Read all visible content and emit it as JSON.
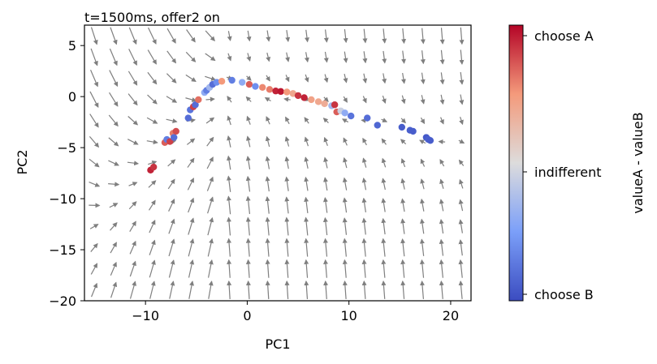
{
  "chart_data": {
    "type": "scatter",
    "title": "t=1500ms, offer2 on",
    "xlabel": "PC1",
    "ylabel": "PC2",
    "xlim": [
      -16,
      22
    ],
    "ylim": [
      -20,
      7
    ],
    "xticks": [
      -10,
      0,
      10,
      20
    ],
    "yticks": [
      5,
      0,
      -5,
      -10,
      -15,
      -20
    ],
    "xtick_labels": [
      "−10",
      "0",
      "10",
      "20"
    ],
    "ytick_labels": [
      "5",
      "0",
      "−5",
      "−10",
      "−15",
      "−20"
    ],
    "grid": false,
    "vector_field": {
      "type": "quiver",
      "color": "#7f7f7f",
      "description_of_flow": "arrows converge toward the curved trajectory near PC2≈0"
    },
    "points": [
      {
        "x": -9.5,
        "y": -7.2,
        "v": 0.95
      },
      {
        "x": -9.2,
        "y": -6.9,
        "v": 0.92
      },
      {
        "x": -8.1,
        "y": -4.5,
        "v": 0.85
      },
      {
        "x": -7.9,
        "y": -4.2,
        "v": 0.15
      },
      {
        "x": -7.6,
        "y": -4.4,
        "v": 0.9
      },
      {
        "x": -7.3,
        "y": -3.6,
        "v": 0.8
      },
      {
        "x": -7.2,
        "y": -4.0,
        "v": 0.1
      },
      {
        "x": -7.0,
        "y": -3.4,
        "v": 0.88
      },
      {
        "x": -5.8,
        "y": -2.1,
        "v": 0.1
      },
      {
        "x": -5.6,
        "y": -1.3,
        "v": 0.12
      },
      {
        "x": -5.3,
        "y": -1.0,
        "v": 0.9
      },
      {
        "x": -5.1,
        "y": -0.8,
        "v": 0.1
      },
      {
        "x": -4.8,
        "y": -0.3,
        "v": 0.82
      },
      {
        "x": -4.2,
        "y": 0.4,
        "v": 0.3
      },
      {
        "x": -4.0,
        "y": 0.6,
        "v": 0.15
      },
      {
        "x": -3.7,
        "y": 0.9,
        "v": 0.35
      },
      {
        "x": -3.4,
        "y": 1.2,
        "v": 0.1
      },
      {
        "x": -3.0,
        "y": 1.4,
        "v": 0.2
      },
      {
        "x": -2.5,
        "y": 1.5,
        "v": 0.75
      },
      {
        "x": -1.5,
        "y": 1.6,
        "v": 0.15
      },
      {
        "x": -0.5,
        "y": 1.4,
        "v": 0.3
      },
      {
        "x": 0.2,
        "y": 1.2,
        "v": 0.85
      },
      {
        "x": 0.8,
        "y": 1.0,
        "v": 0.2
      },
      {
        "x": 1.5,
        "y": 0.9,
        "v": 0.78
      },
      {
        "x": 2.2,
        "y": 0.7,
        "v": 0.8
      },
      {
        "x": 2.8,
        "y": 0.55,
        "v": 0.95
      },
      {
        "x": 3.3,
        "y": 0.5,
        "v": 0.97
      },
      {
        "x": 3.9,
        "y": 0.45,
        "v": 0.75
      },
      {
        "x": 4.5,
        "y": 0.3,
        "v": 0.7
      },
      {
        "x": 5.0,
        "y": 0.1,
        "v": 0.92
      },
      {
        "x": 5.6,
        "y": -0.1,
        "v": 0.95
      },
      {
        "x": 6.3,
        "y": -0.3,
        "v": 0.72
      },
      {
        "x": 7.0,
        "y": -0.5,
        "v": 0.7
      },
      {
        "x": 7.6,
        "y": -0.7,
        "v": 0.68
      },
      {
        "x": 8.3,
        "y": -0.9,
        "v": 0.35
      },
      {
        "x": 8.6,
        "y": -0.8,
        "v": 0.92
      },
      {
        "x": 8.8,
        "y": -1.5,
        "v": 0.85
      },
      {
        "x": 9.2,
        "y": -1.4,
        "v": 0.45
      },
      {
        "x": 9.6,
        "y": -1.6,
        "v": 0.3
      },
      {
        "x": 10.2,
        "y": -1.9,
        "v": 0.12
      },
      {
        "x": 11.8,
        "y": -2.1,
        "v": 0.1
      },
      {
        "x": 12.8,
        "y": -2.8,
        "v": 0.08
      },
      {
        "x": 15.2,
        "y": -3.0,
        "v": 0.05
      },
      {
        "x": 16.0,
        "y": -3.3,
        "v": 0.06
      },
      {
        "x": 16.3,
        "y": -3.4,
        "v": 0.05
      },
      {
        "x": 17.6,
        "y": -4.0,
        "v": 0.04
      },
      {
        "x": 17.8,
        "y": -4.2,
        "v": 0.06
      },
      {
        "x": 18.0,
        "y": -4.3,
        "v": 0.05
      }
    ],
    "colorbar": {
      "label": "valueA - valueB",
      "colormap": "coolwarm",
      "tick_labels": [
        "choose A",
        "indifferent",
        "choose B"
      ],
      "tick_values": [
        1,
        0.5,
        0
      ]
    }
  }
}
